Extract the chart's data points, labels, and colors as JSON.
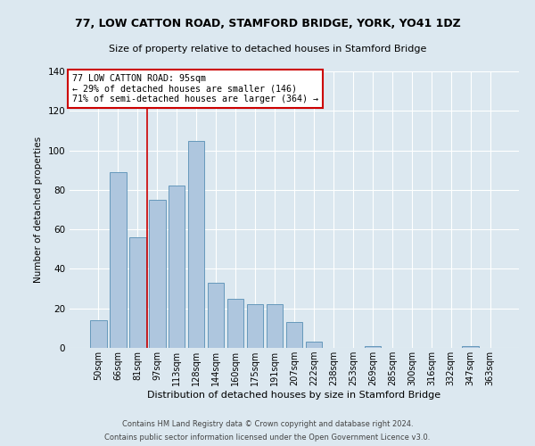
{
  "title": "77, LOW CATTON ROAD, STAMFORD BRIDGE, YORK, YO41 1DZ",
  "subtitle": "Size of property relative to detached houses in Stamford Bridge",
  "xlabel": "Distribution of detached houses by size in Stamford Bridge",
  "ylabel": "Number of detached properties",
  "bar_labels": [
    "50sqm",
    "66sqm",
    "81sqm",
    "97sqm",
    "113sqm",
    "128sqm",
    "144sqm",
    "160sqm",
    "175sqm",
    "191sqm",
    "207sqm",
    "222sqm",
    "238sqm",
    "253sqm",
    "269sqm",
    "285sqm",
    "300sqm",
    "316sqm",
    "332sqm",
    "347sqm",
    "363sqm"
  ],
  "bar_values": [
    14,
    89,
    56,
    75,
    82,
    105,
    33,
    25,
    22,
    22,
    13,
    3,
    0,
    0,
    1,
    0,
    0,
    0,
    0,
    1,
    0
  ],
  "bar_color": "#aec6de",
  "bar_edge_color": "#6699bb",
  "background_color": "#dce8f0",
  "grid_color": "#ffffff",
  "property_line_x": 3,
  "annotation_line1": "77 LOW CATTON ROAD: 95sqm",
  "annotation_line2": "← 29% of detached houses are smaller (146)",
  "annotation_line3": "71% of semi-detached houses are larger (364) →",
  "annotation_box_color": "#ffffff",
  "annotation_box_edge": "#cc0000",
  "vline_color": "#cc0000",
  "ylim": [
    0,
    140
  ],
  "yticks": [
    0,
    20,
    40,
    60,
    80,
    100,
    120,
    140
  ],
  "footer1": "Contains HM Land Registry data © Crown copyright and database right 2024.",
  "footer2": "Contains public sector information licensed under the Open Government Licence v3.0."
}
